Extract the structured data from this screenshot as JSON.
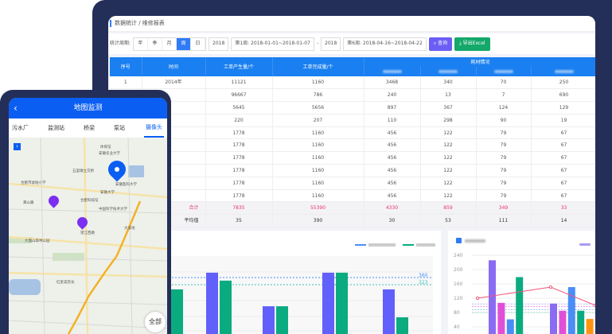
{
  "breadcrumb": "数据统计 / 维修报表",
  "filter": {
    "label": "统计周期:",
    "periods": [
      "年",
      "季",
      "月",
      "周",
      "日"
    ],
    "active": "周",
    "year1": "2018",
    "week1": "第1周: 2018-01-01~2018-01-07",
    "sep": "-",
    "year2": "2018",
    "week2": "第6周: 2018-04-16~2018-04-22",
    "query": "查询",
    "export": "导出Excel"
  },
  "table": {
    "headers": [
      "序号",
      "时间",
      "工单产生量/个",
      "工单完成量/个"
    ],
    "group_header": "耗材情况",
    "rows": [
      [
        "1",
        "2014年",
        "11121",
        "1160",
        "3468",
        "340",
        "70",
        "250"
      ],
      [
        "",
        "",
        "96667",
        "786",
        "240",
        "13",
        "7",
        "690"
      ],
      [
        "",
        "",
        "5645",
        "5656",
        "897",
        "367",
        "124",
        "129"
      ],
      [
        "",
        "",
        "220",
        "207",
        "110",
        "298",
        "90",
        "19"
      ],
      [
        "",
        "",
        "1778",
        "1160",
        "456",
        "122",
        "79",
        "67"
      ],
      [
        "",
        "",
        "1778",
        "1160",
        "456",
        "122",
        "79",
        "67"
      ],
      [
        "",
        "",
        "1778",
        "1160",
        "456",
        "122",
        "79",
        "67"
      ],
      [
        "",
        "",
        "1778",
        "1160",
        "456",
        "122",
        "79",
        "67"
      ],
      [
        "",
        "",
        "1778",
        "1160",
        "456",
        "122",
        "79",
        "67"
      ],
      [
        "",
        "",
        "1778",
        "1160",
        "456",
        "122",
        "79",
        "67"
      ]
    ],
    "sum": [
      "合计",
      "7835",
      "55390",
      "4330",
      "859",
      "349",
      "33"
    ],
    "avg": [
      "平均值",
      "35",
      "390",
      "30",
      "53",
      "111",
      "14"
    ]
  },
  "phone": {
    "title": "地图监测",
    "tabs": [
      "污水厂",
      "监测站",
      "桥梁",
      "泵站",
      "摄像头"
    ],
    "active_tab": "摄像头",
    "all_button": "全部",
    "map_labels": [
      "体育馆",
      "安徽农业大学",
      "五里墩立交桥",
      "安徽医科大学",
      "合肥科技馆",
      "安徽大学",
      "中国科学技术大学",
      "黄山路",
      "望江西路",
      "大蜀山森林公园",
      "合肥市琥珀小学",
      "大溪地",
      "红星美凯龙"
    ]
  },
  "chart_data": [
    {
      "type": "bar",
      "series": [
        {
          "values": [
            null,
            385,
            212,
            385,
            299
          ],
          "color": "#6160fa"
        },
        {
          "values": [
            299,
            344,
            212,
            385,
            155
          ],
          "color": "#0bab80"
        }
      ],
      "reference_lines": [
        {
          "label": "360",
          "value": 360,
          "color": "#4a8ff7"
        },
        {
          "label": "323",
          "value": 323,
          "color": "#3fc0b5"
        }
      ],
      "grid": true,
      "legend": "top-right"
    },
    {
      "type": "bar",
      "yticks": [
        "240",
        "200",
        "160",
        "120",
        "80",
        "40"
      ],
      "ylim": [
        0,
        240
      ],
      "series": [
        {
          "values": [
            226,
            105
          ],
          "color": "#8a6cf2"
        },
        {
          "values": [
            107,
            85
          ],
          "color": "#e04fd8"
        },
        {
          "values": [
            61,
            151
          ],
          "color": "#4b8df6"
        },
        {
          "values": [
            179,
            85
          ],
          "color": "#0bab80"
        },
        {
          "values": [
            null,
            62
          ],
          "color": "#ff9410"
        }
      ],
      "line": {
        "values": [
          120,
          151,
          100
        ],
        "color": "#f0557a"
      },
      "reference_lines": [
        104,
        97,
        88,
        80
      ],
      "grid": true,
      "legend": "top-right"
    }
  ]
}
